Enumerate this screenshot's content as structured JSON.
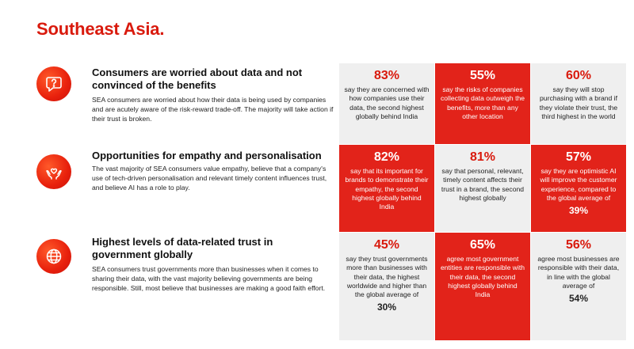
{
  "page_title": "Southeast Asia.",
  "colors": {
    "accent": "#e2231a",
    "grey": "#efefef"
  },
  "sections": [
    {
      "icon": "question-mark-icon",
      "heading": "Consumers are worried about data and not convinced of the benefits",
      "body": "SEA consumers are worried about how their data is being used by companies and are acutely aware of the risk-reward trade-off. The majority will take action if their trust is broken."
    },
    {
      "icon": "hands-heart-icon",
      "heading": "Opportunities for empathy and personalisation",
      "body": "The vast majority of SEA consumers value empathy, believe that a company's use of tech-driven personalisation and relevant timely content influences trust, and believe AI has a role to play."
    },
    {
      "icon": "globe-icon",
      "heading": "Highest levels of data-related trust in government globally",
      "body": "SEA consumers trust governments more than businesses when it comes to sharing their data, with the vast majority believing governments are being responsible. Still, most believe that businesses are making a good faith effort."
    }
  ],
  "stats": [
    {
      "pct": "83%",
      "desc": "say they are concerned with how companies use their data, the second highest globally behind India",
      "tail": ""
    },
    {
      "pct": "55%",
      "desc": "say the risks of companies collecting data outweigh the benefits, more than any other location",
      "tail": ""
    },
    {
      "pct": "60%",
      "desc": "say they will stop purchasing with a brand if they violate their trust, the third highest in the world",
      "tail": ""
    },
    {
      "pct": "82%",
      "desc": "say that its important for brands to demonstrate their empathy, the second highest globally behind India",
      "tail": ""
    },
    {
      "pct": "81%",
      "desc": "say that personal, relevant, timely content affects their trust in a brand, the second highest globally",
      "tail": ""
    },
    {
      "pct": "57%",
      "desc": "say they are optimistic AI will improve the customer experience, compared to the global average of",
      "tail": "39%"
    },
    {
      "pct": "45%",
      "desc": "say they trust governments more than businesses with their data, the highest worldwide and higher than the global average of",
      "tail": "30%"
    },
    {
      "pct": "65%",
      "desc": "agree most government entities are responsible with their data, the second highest globally behind India",
      "tail": ""
    },
    {
      "pct": "56%",
      "desc": "agree most businesses are responsible with their data, in line with the global average of",
      "tail": "54%"
    }
  ]
}
